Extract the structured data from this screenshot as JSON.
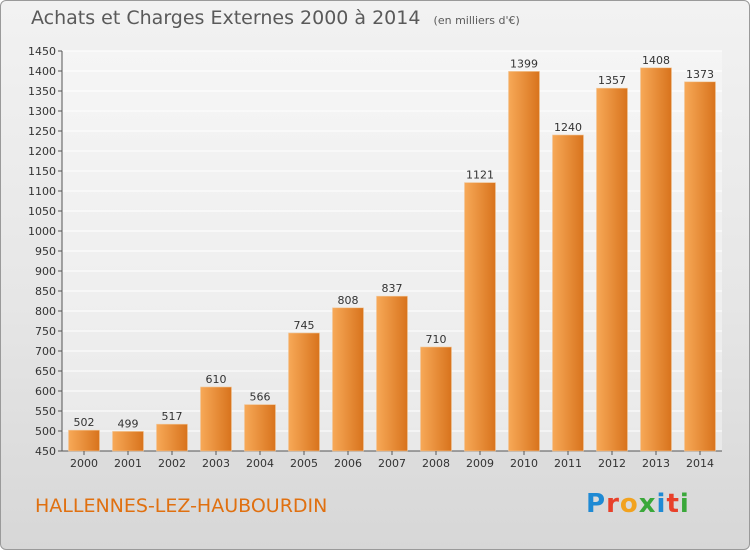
{
  "header": {
    "title": "Achats et Charges Externes 2000 à 2014",
    "subtitle": "(en milliers d'€)"
  },
  "footer": {
    "commune": "HALLENNES-LEZ-HAUBOURDIN",
    "brand": "Proxiti",
    "brand_colors": [
      "#1f8ad4",
      "#e8402a",
      "#f2a21e",
      "#3aa83a",
      "#1f8ad4",
      "#e8402a",
      "#3aa83a"
    ]
  },
  "colors": {
    "bar_light": "#f7a958",
    "bar_dark": "#d8731c",
    "accent": "#e07010"
  },
  "chart_data": {
    "type": "bar",
    "title": "Achats et Charges Externes 2000 à 2014",
    "subtitle": "(en milliers d'€)",
    "categories": [
      "2000",
      "2001",
      "2002",
      "2003",
      "2004",
      "2005",
      "2006",
      "2007",
      "2008",
      "2009",
      "2010",
      "2011",
      "2012",
      "2013",
      "2014"
    ],
    "values": [
      502,
      499,
      517,
      610,
      566,
      745,
      808,
      837,
      710,
      1121,
      1399,
      1240,
      1357,
      1408,
      1373
    ],
    "ylim": [
      450,
      1450
    ],
    "ytick_step": 50,
    "grid": true,
    "data_labels": true,
    "legend": "none"
  }
}
